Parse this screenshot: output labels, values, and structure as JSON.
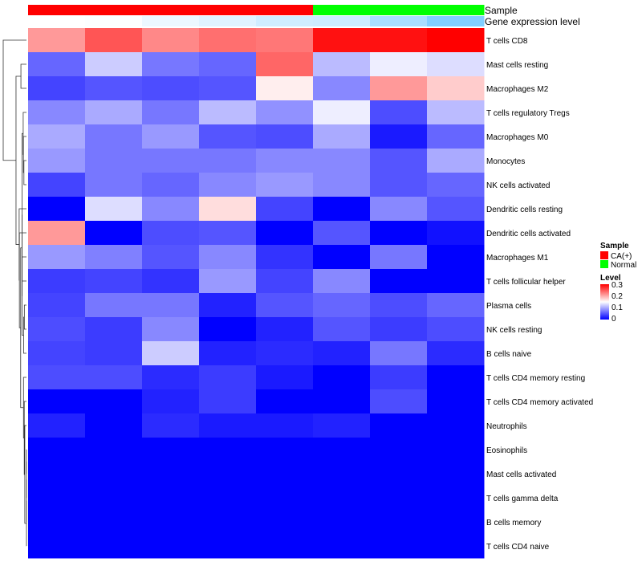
{
  "chart_data": {
    "type": "heatmap",
    "annotation_tracks": [
      {
        "name": "Sample",
        "values": [
          "CA(+)",
          "CA(+)",
          "CA(+)",
          "CA(+)",
          "CA(+)",
          "Normal",
          "Normal",
          "Normal"
        ]
      },
      {
        "name": "Gene expression level",
        "values": [
          0.0,
          0.02,
          0.12,
          0.2,
          0.3,
          0.32,
          0.55,
          0.8
        ]
      }
    ],
    "rows": [
      "T cells CD8",
      "Mast cells resting",
      "Macrophages M2",
      "T cells regulatory  Tregs",
      "Macrophages M0",
      "Monocytes",
      "NK cells activated",
      "Dendritic cells resting",
      "Dendritic cells activated",
      "Macrophages M1",
      "T cells follicular helper",
      "Plasma cells",
      "NK cells resting",
      "B cells naive",
      "T cells CD4 memory resting",
      "T cells CD4 memory activated",
      "Neutrophils",
      "Eosinophils",
      "Mast cells activated",
      "T cells gamma delta",
      "B cells memory",
      "T cells CD4 naive"
    ],
    "values": [
      [
        0.21,
        0.25,
        0.22,
        0.235,
        0.23,
        0.29,
        0.29,
        0.3
      ],
      [
        0.06,
        0.12,
        0.07,
        0.06,
        0.24,
        0.11,
        0.14,
        0.13
      ],
      [
        0.04,
        0.05,
        0.045,
        0.05,
        0.16,
        0.08,
        0.21,
        0.18
      ],
      [
        0.08,
        0.1,
        0.07,
        0.11,
        0.085,
        0.14,
        0.045,
        0.11
      ],
      [
        0.1,
        0.07,
        0.09,
        0.05,
        0.045,
        0.1,
        0.015,
        0.06
      ],
      [
        0.09,
        0.07,
        0.07,
        0.07,
        0.08,
        0.08,
        0.05,
        0.1
      ],
      [
        0.04,
        0.07,
        0.06,
        0.08,
        0.09,
        0.08,
        0.05,
        0.06
      ],
      [
        0.0,
        0.13,
        0.08,
        0.17,
        0.04,
        0.0,
        0.08,
        0.05
      ],
      [
        0.21,
        0.0,
        0.045,
        0.05,
        0.0,
        0.05,
        0.0,
        0.01
      ],
      [
        0.09,
        0.075,
        0.05,
        0.08,
        0.03,
        0.0,
        0.07,
        0.0
      ],
      [
        0.035,
        0.04,
        0.03,
        0.09,
        0.04,
        0.08,
        0.0,
        0.0
      ],
      [
        0.04,
        0.07,
        0.07,
        0.02,
        0.05,
        0.06,
        0.045,
        0.06
      ],
      [
        0.045,
        0.035,
        0.08,
        0.0,
        0.02,
        0.05,
        0.035,
        0.045
      ],
      [
        0.04,
        0.035,
        0.12,
        0.02,
        0.025,
        0.02,
        0.07,
        0.025
      ],
      [
        0.045,
        0.045,
        0.025,
        0.035,
        0.015,
        0.0,
        0.035,
        0.0
      ],
      [
        0.0,
        0.0,
        0.02,
        0.035,
        0.0,
        0.0,
        0.045,
        0.0
      ],
      [
        0.02,
        0.0,
        0.025,
        0.015,
        0.015,
        0.02,
        0.0,
        0.0
      ],
      [
        0.0,
        0.0,
        0.0,
        0.0,
        0.0,
        0.0,
        0.0,
        0.0
      ],
      [
        0.0,
        0.0,
        0.0,
        0.0,
        0.0,
        0.0,
        0.0,
        0.0
      ],
      [
        0.0,
        0.0,
        0.0,
        0.0,
        0.0,
        0.0,
        0.0,
        0.0
      ],
      [
        0.0,
        0.0,
        0.0,
        0.0,
        0.0,
        0.0,
        0.0,
        0.0
      ],
      [
        0.0,
        0.0,
        0.0,
        0.0,
        0.0,
        0.0,
        0.0,
        0.0
      ]
    ],
    "scale": {
      "min": 0,
      "mid": 0.15,
      "max": 0.3,
      "low_color": "#0000ff",
      "mid_color": "#ffffff",
      "high_color": "#ff0000"
    },
    "sample_colors": {
      "CA(+)": "#ff0000",
      "Normal": "#00ff00"
    },
    "gene_expression_colors": {
      "low": "#ffffff",
      "high": "#63c3ff"
    },
    "row_dendrogram": true
  },
  "legend": {
    "sample_title": "Sample",
    "sample_items": [
      {
        "label": "CA(+)",
        "color": "#ff0000"
      },
      {
        "label": "Normal",
        "color": "#00ff00"
      }
    ],
    "level_title": "Level",
    "level_ticks": [
      "0.3",
      "0.2",
      "0.1",
      "0"
    ]
  }
}
